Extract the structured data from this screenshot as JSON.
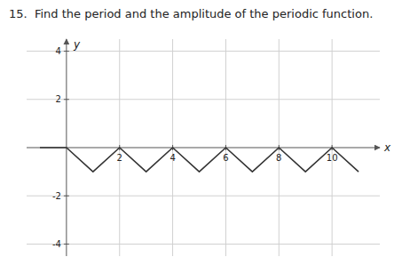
{
  "chart_data": {
    "type": "line",
    "title": "15.  Find the period and the amplitude of the periodic function.",
    "x_label": "x",
    "y_label": "y",
    "x": [
      -1,
      0,
      1,
      2,
      3,
      4,
      5,
      6,
      7,
      8,
      9,
      10,
      11
    ],
    "values": [
      0,
      0,
      -1,
      0,
      -1,
      0,
      -1,
      0,
      -1,
      0,
      -1,
      0,
      -1
    ],
    "color": "#333333",
    "xlim": [
      -1.5,
      11.8
    ],
    "ylim": [
      -4.5,
      4.5
    ],
    "xticks": [
      2,
      4,
      6,
      8,
      10
    ],
    "yticks": [
      -4,
      -2,
      2,
      4
    ],
    "grid": true
  }
}
